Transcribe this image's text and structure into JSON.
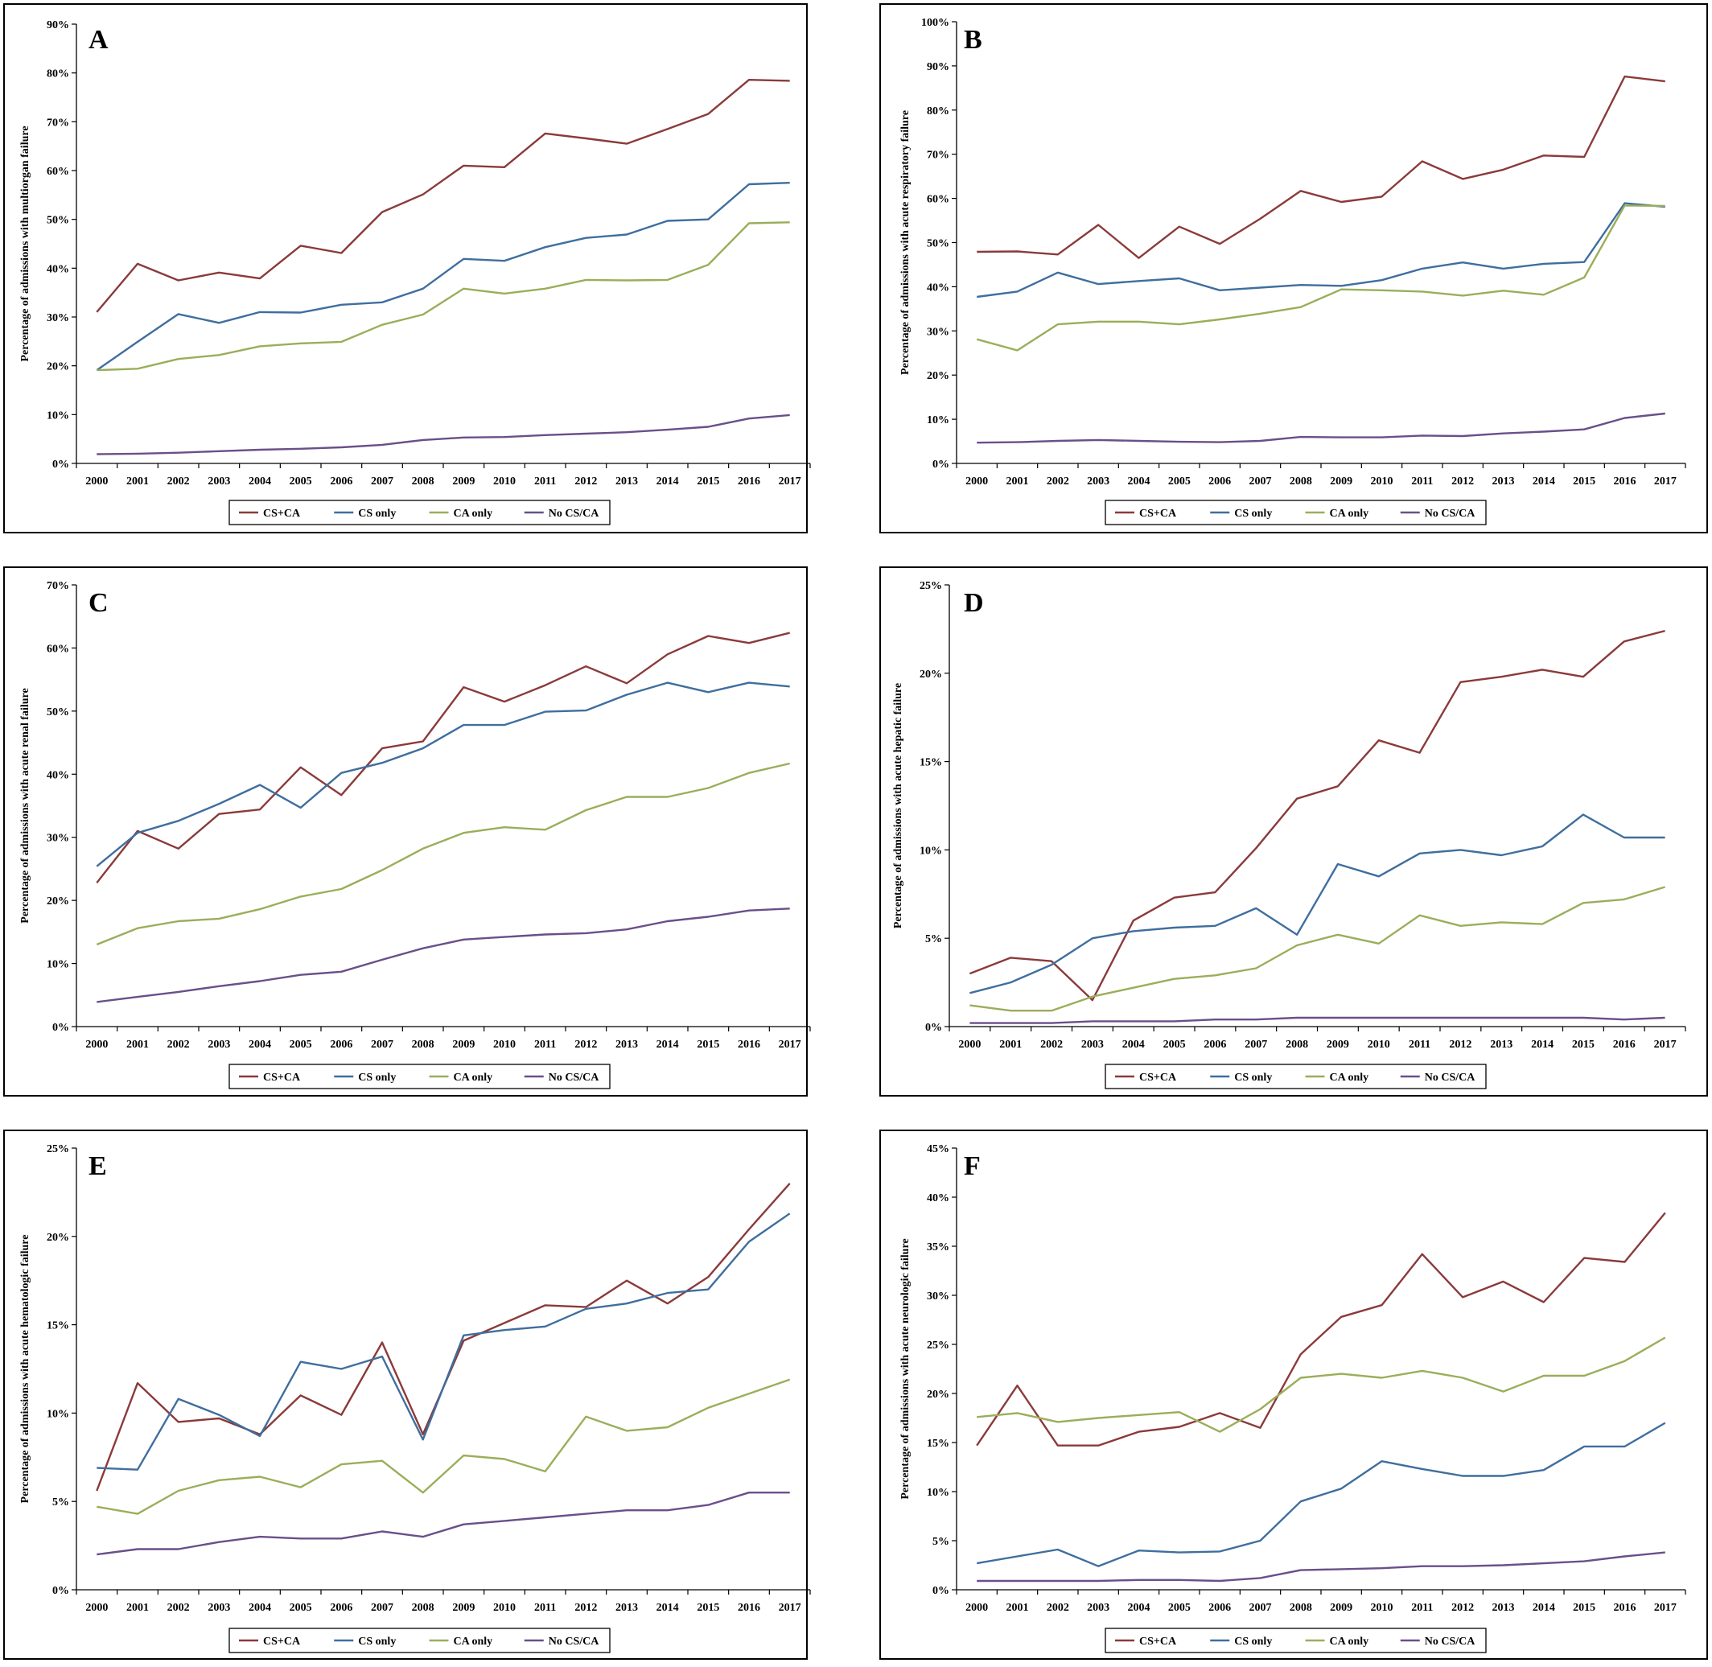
{
  "legend_labels": [
    "CS+CA",
    "CS only",
    "CA only",
    "No CS/CA"
  ],
  "chart_data": [
    {
      "panel": "A",
      "type": "line",
      "ylabel": "Percentage of admissions with multiorgan failure",
      "x": [
        "2000",
        "2001",
        "2002",
        "2003",
        "2004",
        "2005",
        "2006",
        "2007",
        "2008",
        "2009",
        "2010",
        "2011",
        "2012",
        "2013",
        "2014",
        "2015",
        "2016",
        "2017"
      ],
      "ylim": [
        0,
        90
      ],
      "yticks": [
        "0%",
        "10%",
        "20%",
        "30%",
        "40%",
        "50%",
        "60%",
        "70%",
        "80%",
        "90%"
      ],
      "grid": false,
      "legend": "bottom",
      "series": [
        {
          "name": "CS+CA",
          "color": "#8b3a3a",
          "values": [
            31,
            40.9,
            37.5,
            39.1,
            37.9,
            44.6,
            43.1,
            51.5,
            55.1,
            61,
            60.7,
            67.6,
            66.6,
            65.5,
            68.5,
            71.6,
            78.6,
            78.4
          ]
        },
        {
          "name": "CS only",
          "color": "#3f6e9e",
          "values": [
            19.1,
            24.9,
            30.6,
            28.8,
            31,
            30.9,
            32.5,
            33,
            35.8,
            41.9,
            41.5,
            44.3,
            46.2,
            46.9,
            49.7,
            50,
            57.2,
            57.5
          ]
        },
        {
          "name": "CA only",
          "color": "#9aae5a",
          "values": [
            19.1,
            19.4,
            21.4,
            22.2,
            24,
            24.6,
            24.9,
            28.4,
            30.5,
            35.8,
            34.8,
            35.8,
            37.6,
            37.5,
            37.6,
            40.7,
            49.2,
            49.4
          ]
        },
        {
          "name": "No CS/CA",
          "color": "#6a4f8a",
          "values": [
            1.9,
            2,
            2.2,
            2.5,
            2.8,
            3,
            3.3,
            3.8,
            4.8,
            5.3,
            5.4,
            5.8,
            6.1,
            6.4,
            6.9,
            7.5,
            9.2,
            9.9
          ]
        }
      ]
    },
    {
      "panel": "B",
      "type": "line",
      "ylabel": "Percentage of admissions with acute respiratory failure",
      "x": [
        "2000",
        "2001",
        "2002",
        "2003",
        "2004",
        "2005",
        "2006",
        "2007",
        "2008",
        "2009",
        "2010",
        "2011",
        "2012",
        "2013",
        "2014",
        "2015",
        "2016",
        "2017"
      ],
      "ylim": [
        0,
        100
      ],
      "yticks": [
        "0%",
        "10%",
        "20%",
        "30%",
        "40%",
        "50%",
        "60%",
        "70%",
        "80%",
        "90%",
        "100%"
      ],
      "grid": false,
      "legend": "bottom",
      "series": [
        {
          "name": "CS+CA",
          "color": "#8b3a3a",
          "values": [
            47.9,
            48,
            47.3,
            54,
            46.5,
            53.6,
            49.7,
            55.4,
            61.7,
            59.2,
            60.4,
            68.4,
            64.4,
            66.5,
            69.7,
            69.4,
            87.6,
            86.5
          ]
        },
        {
          "name": "CS only",
          "color": "#3f6e9e",
          "values": [
            37.7,
            38.9,
            43.2,
            40.6,
            41.3,
            41.9,
            39.2,
            39.8,
            40.4,
            40.2,
            41.5,
            44.1,
            45.5,
            44.1,
            45.2,
            45.6,
            58.9,
            58.1
          ]
        },
        {
          "name": "CA only",
          "color": "#9aae5a",
          "values": [
            28.1,
            25.6,
            31.5,
            32.1,
            32.1,
            31.5,
            32.6,
            33.9,
            35.4,
            39.4,
            39.2,
            38.9,
            38,
            39.1,
            38.2,
            42.1,
            58.4,
            58.3
          ]
        },
        {
          "name": "No CS/CA",
          "color": "#6a4f8a",
          "values": [
            4.7,
            4.8,
            5.1,
            5.3,
            5.1,
            4.9,
            4.8,
            5.1,
            6,
            5.9,
            5.9,
            6.3,
            6.2,
            6.8,
            7.2,
            7.7,
            10.3,
            11.3
          ]
        }
      ]
    },
    {
      "panel": "C",
      "type": "line",
      "ylabel": "Percentage of admissions with acute renal failure",
      "x": [
        "2000",
        "2001",
        "2002",
        "2003",
        "2004",
        "2005",
        "2006",
        "2007",
        "2008",
        "2009",
        "2010",
        "2011",
        "2012",
        "2013",
        "2014",
        "2015",
        "2016",
        "2017"
      ],
      "ylim": [
        0,
        70
      ],
      "yticks": [
        "0%",
        "10%",
        "20%",
        "30%",
        "40%",
        "50%",
        "60%",
        "70%"
      ],
      "grid": false,
      "legend": "bottom",
      "series": [
        {
          "name": "CS+CA",
          "color": "#8b3a3a",
          "values": [
            22.8,
            31,
            28.2,
            33.7,
            34.4,
            41.1,
            36.7,
            44.1,
            45.2,
            53.8,
            51.5,
            54.1,
            57.1,
            54.4,
            59,
            61.9,
            60.8,
            62.4
          ]
        },
        {
          "name": "CS only",
          "color": "#3f6e9e",
          "values": [
            25.4,
            30.7,
            32.6,
            35.3,
            38.3,
            34.7,
            40.2,
            41.8,
            44.1,
            47.8,
            47.8,
            49.9,
            50.1,
            52.6,
            54.5,
            53,
            54.5,
            53.9
          ]
        },
        {
          "name": "CA only",
          "color": "#9aae5a",
          "values": [
            13,
            15.6,
            16.7,
            17.1,
            18.6,
            20.6,
            21.8,
            24.8,
            28.2,
            30.7,
            31.6,
            31.2,
            34.3,
            36.4,
            36.4,
            37.8,
            40.2,
            41.7
          ]
        },
        {
          "name": "No CS/CA",
          "color": "#6a4f8a",
          "values": [
            3.9,
            4.7,
            5.5,
            6.4,
            7.2,
            8.2,
            8.7,
            10.6,
            12.4,
            13.8,
            14.2,
            14.6,
            14.8,
            15.4,
            16.7,
            17.4,
            18.4,
            18.7
          ]
        }
      ]
    },
    {
      "panel": "D",
      "type": "line",
      "ylabel": "Percentage of admissions with acute hepatic failure",
      "x": [
        "2000",
        "2001",
        "2002",
        "2003",
        "2004",
        "2005",
        "2006",
        "2007",
        "2008",
        "2009",
        "2010",
        "2011",
        "2012",
        "2013",
        "2014",
        "2015",
        "2016",
        "2017"
      ],
      "ylim": [
        0,
        25
      ],
      "yticks": [
        "0%",
        "5%",
        "10%",
        "15%",
        "20%",
        "25%"
      ],
      "grid": false,
      "legend": "bottom",
      "series": [
        {
          "name": "CS+CA",
          "color": "#8b3a3a",
          "values": [
            3,
            3.9,
            3.7,
            1.5,
            6,
            7.3,
            7.6,
            10.1,
            12.9,
            13.6,
            16.2,
            15.5,
            19.5,
            19.8,
            20.2,
            19.8,
            21.8,
            22.4
          ]
        },
        {
          "name": "CS only",
          "color": "#3f6e9e",
          "values": [
            1.9,
            2.5,
            3.5,
            5,
            5.4,
            5.6,
            5.7,
            6.7,
            5.2,
            9.2,
            8.5,
            9.8,
            10,
            9.7,
            10.2,
            12,
            10.7,
            10.7
          ]
        },
        {
          "name": "CA only",
          "color": "#9aae5a",
          "values": [
            1.2,
            0.9,
            0.9,
            1.7,
            2.2,
            2.7,
            2.9,
            3.3,
            4.6,
            5.2,
            4.7,
            6.3,
            5.7,
            5.9,
            5.8,
            7,
            7.2,
            7.9
          ]
        },
        {
          "name": "No CS/CA",
          "color": "#6a4f8a",
          "values": [
            0.2,
            0.2,
            0.2,
            0.3,
            0.3,
            0.3,
            0.4,
            0.4,
            0.5,
            0.5,
            0.5,
            0.5,
            0.5,
            0.5,
            0.5,
            0.5,
            0.4,
            0.5
          ]
        }
      ]
    },
    {
      "panel": "E",
      "type": "line",
      "ylabel": "Percentage of admissions with acute hematologic failure",
      "x": [
        "2000",
        "2001",
        "2002",
        "2003",
        "2004",
        "2005",
        "2006",
        "2007",
        "2008",
        "2009",
        "2010",
        "2011",
        "2012",
        "2013",
        "2014",
        "2015",
        "2016",
        "2017"
      ],
      "ylim": [
        0,
        25
      ],
      "yticks": [
        "0%",
        "5%",
        "10%",
        "15%",
        "20%",
        "25%"
      ],
      "grid": false,
      "legend": "bottom",
      "series": [
        {
          "name": "CS+CA",
          "color": "#8b3a3a",
          "values": [
            5.6,
            11.7,
            9.5,
            9.7,
            8.8,
            11,
            9.9,
            14,
            8.8,
            14.1,
            15.1,
            16.1,
            16,
            17.5,
            16.2,
            17.7,
            20.4,
            23
          ]
        },
        {
          "name": "CS only",
          "color": "#3f6e9e",
          "values": [
            6.9,
            6.8,
            10.8,
            9.9,
            8.7,
            12.9,
            12.5,
            13.2,
            8.5,
            14.4,
            14.7,
            14.9,
            15.9,
            16.2,
            16.8,
            17,
            19.7,
            21.3
          ]
        },
        {
          "name": "CA only",
          "color": "#9aae5a",
          "values": [
            4.7,
            4.3,
            5.6,
            6.2,
            6.4,
            5.8,
            7.1,
            7.3,
            5.5,
            7.6,
            7.4,
            6.7,
            9.8,
            9,
            9.2,
            10.3,
            11.1,
            11.9
          ]
        },
        {
          "name": "No CS/CA",
          "color": "#6a4f8a",
          "values": [
            2,
            2.3,
            2.3,
            2.7,
            3,
            2.9,
            2.9,
            3.3,
            3,
            3.7,
            3.9,
            4.1,
            4.3,
            4.5,
            4.5,
            4.8,
            5.5,
            5.5
          ]
        }
      ]
    },
    {
      "panel": "F",
      "type": "line",
      "ylabel": "Percentage of admissions with acute neurologic failure",
      "x": [
        "2000",
        "2001",
        "2002",
        "2003",
        "2004",
        "2005",
        "2006",
        "2007",
        "2008",
        "2009",
        "2010",
        "2011",
        "2012",
        "2013",
        "2014",
        "2015",
        "2016",
        "2017"
      ],
      "ylim": [
        0,
        45
      ],
      "yticks": [
        "0%",
        "5%",
        "10%",
        "15%",
        "20%",
        "25%",
        "30%",
        "35%",
        "40%",
        "45%"
      ],
      "grid": false,
      "legend": "bottom",
      "series": [
        {
          "name": "CS+CA",
          "color": "#8b3a3a",
          "values": [
            14.7,
            20.8,
            14.7,
            14.7,
            16.1,
            16.6,
            18,
            16.5,
            24,
            27.8,
            29,
            34.2,
            29.8,
            31.4,
            29.3,
            33.8,
            33.4,
            38.4
          ]
        },
        {
          "name": "CS only",
          "color": "#3f6e9e",
          "values": [
            2.7,
            3.4,
            4.1,
            2.4,
            4,
            3.8,
            3.9,
            5,
            9,
            10.3,
            13.1,
            12.3,
            11.6,
            11.6,
            12.2,
            14.6,
            14.6,
            17
          ]
        },
        {
          "name": "CA only",
          "color": "#9aae5a",
          "values": [
            17.6,
            18,
            17.1,
            17.5,
            17.8,
            18.1,
            16.1,
            18.4,
            21.6,
            22,
            21.6,
            22.3,
            21.6,
            20.2,
            21.8,
            21.8,
            23.3,
            25.7
          ]
        },
        {
          "name": "No CS/CA",
          "color": "#6a4f8a",
          "values": [
            0.9,
            0.9,
            0.9,
            0.9,
            1,
            1,
            0.9,
            1.2,
            2,
            2.1,
            2.2,
            2.4,
            2.4,
            2.5,
            2.7,
            2.9,
            3.4,
            3.8
          ]
        }
      ]
    }
  ]
}
